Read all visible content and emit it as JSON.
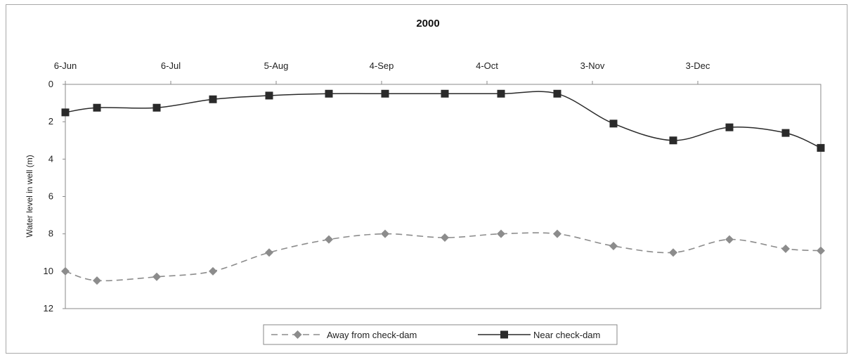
{
  "chart_data": {
    "type": "line",
    "title": "2000",
    "xlabel": "",
    "ylabel": "Water level in well (m)",
    "x_axis_position": "top",
    "x_tick_labels": [
      "6-Jun",
      "6-Jul",
      "5-Aug",
      "4-Sep",
      "4-Oct",
      "3-Nov",
      "3-Dec"
    ],
    "x_tick_dates": [
      "2000-06-06",
      "2000-07-06",
      "2000-08-05",
      "2000-09-04",
      "2000-10-04",
      "2000-11-03",
      "2000-12-03"
    ],
    "xlim": [
      "2000-06-06",
      "2001-01-07"
    ],
    "y_tick_labels": [
      "0",
      "2",
      "4",
      "6",
      "8",
      "10",
      "12"
    ],
    "ylim": [
      0,
      12
    ],
    "y_reversed": true,
    "grid": false,
    "legend_position": "bottom",
    "series": [
      {
        "name": "Away from check-dam",
        "line_style": "dashed",
        "marker": "diamond",
        "color": "#8c8c8c",
        "points": [
          {
            "x": "2000-06-06",
            "y": 10.0
          },
          {
            "x": "2000-06-15",
            "y": 10.5
          },
          {
            "x": "2000-07-02",
            "y": 10.3
          },
          {
            "x": "2000-07-18",
            "y": 10.0
          },
          {
            "x": "2000-08-03",
            "y": 9.0
          },
          {
            "x": "2000-08-20",
            "y": 8.3
          },
          {
            "x": "2000-09-05",
            "y": 8.0
          },
          {
            "x": "2000-09-22",
            "y": 8.2
          },
          {
            "x": "2000-10-08",
            "y": 8.0
          },
          {
            "x": "2000-10-24",
            "y": 8.0
          },
          {
            "x": "2000-11-09",
            "y": 8.65
          },
          {
            "x": "2000-11-26",
            "y": 9.0
          },
          {
            "x": "2000-12-12",
            "y": 8.3
          },
          {
            "x": "2000-12-28",
            "y": 8.8
          },
          {
            "x": "2001-01-14",
            "y": 8.9
          }
        ]
      },
      {
        "name": "Near check-dam",
        "line_style": "solid",
        "marker": "square",
        "color": "#2a2a2a",
        "points": [
          {
            "x": "2000-06-06",
            "y": 1.5
          },
          {
            "x": "2000-06-15",
            "y": 1.25
          },
          {
            "x": "2000-07-02",
            "y": 1.25
          },
          {
            "x": "2000-07-18",
            "y": 0.8
          },
          {
            "x": "2000-08-03",
            "y": 0.6
          },
          {
            "x": "2000-08-20",
            "y": 0.5
          },
          {
            "x": "2000-09-05",
            "y": 0.5
          },
          {
            "x": "2000-09-22",
            "y": 0.5
          },
          {
            "x": "2000-10-08",
            "y": 0.5
          },
          {
            "x": "2000-10-24",
            "y": 0.5
          },
          {
            "x": "2000-11-09",
            "y": 2.1
          },
          {
            "x": "2000-11-26",
            "y": 3.0
          },
          {
            "x": "2000-12-12",
            "y": 2.3
          },
          {
            "x": "2000-12-28",
            "y": 2.6
          },
          {
            "x": "2001-01-14",
            "y": 3.4
          }
        ]
      }
    ]
  }
}
